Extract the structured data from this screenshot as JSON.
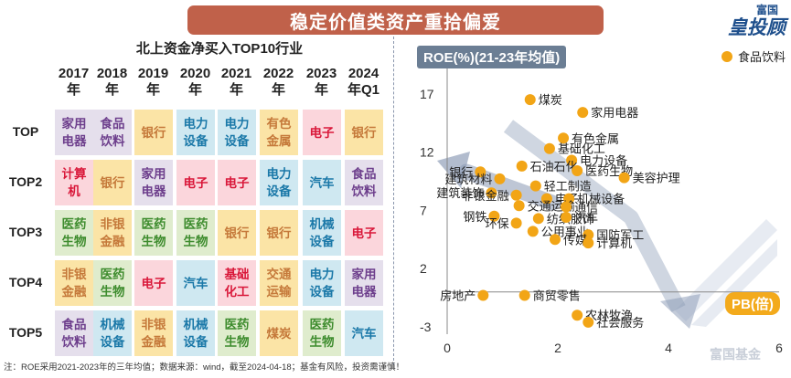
{
  "header": {
    "title": "稳定价值类资产重拾偏爱"
  },
  "logo": {
    "top": "富国",
    "main": "皇投顾",
    "icon": "brand-logo"
  },
  "table": {
    "title": "北上资金净买入TOP10行业",
    "years": [
      [
        "2017",
        "年"
      ],
      [
        "2018",
        "年"
      ],
      [
        "2019",
        "年"
      ],
      [
        "2020",
        "年"
      ],
      [
        "2021",
        "年"
      ],
      [
        "2022",
        "年"
      ],
      [
        "2023",
        "年"
      ],
      [
        "2024",
        "年Q1"
      ]
    ],
    "rows": [
      {
        "label": "TOP",
        "cells": [
          {
            "t": [
              "家用",
              "电器"
            ],
            "c": "purple"
          },
          {
            "t": [
              "食品",
              "饮料"
            ],
            "c": "purple"
          },
          {
            "t": [
              "银行"
            ],
            "c": "orange"
          },
          {
            "t": [
              "电力",
              "设备"
            ],
            "c": "blue"
          },
          {
            "t": [
              "电力",
              "设备"
            ],
            "c": "blue"
          },
          {
            "t": [
              "有色",
              "金属"
            ],
            "c": "orange"
          },
          {
            "t": [
              "电子"
            ],
            "c": "red"
          },
          {
            "t": [
              "银行"
            ],
            "c": "orange"
          }
        ]
      },
      {
        "label": "TOP2",
        "cells": [
          {
            "t": [
              "计算",
              "机"
            ],
            "c": "red"
          },
          {
            "t": [
              "银行"
            ],
            "c": "orange"
          },
          {
            "t": [
              "家用",
              "电器"
            ],
            "c": "purple"
          },
          {
            "t": [
              "电子"
            ],
            "c": "red"
          },
          {
            "t": [
              "电子"
            ],
            "c": "red"
          },
          {
            "t": [
              "电力",
              "设备"
            ],
            "c": "blue"
          },
          {
            "t": [
              "汽车"
            ],
            "c": "blue"
          },
          {
            "t": [
              "食品",
              "饮料"
            ],
            "c": "purple"
          }
        ]
      },
      {
        "label": "TOP3",
        "cells": [
          {
            "t": [
              "医药",
              "生物"
            ],
            "c": "green"
          },
          {
            "t": [
              "非银",
              "金融"
            ],
            "c": "orange"
          },
          {
            "t": [
              "医药",
              "生物"
            ],
            "c": "green"
          },
          {
            "t": [
              "医药",
              "生物"
            ],
            "c": "green"
          },
          {
            "t": [
              "银行"
            ],
            "c": "orange"
          },
          {
            "t": [
              "银行"
            ],
            "c": "orange"
          },
          {
            "t": [
              "机械",
              "设备"
            ],
            "c": "blue"
          },
          {
            "t": [
              "电子"
            ],
            "c": "red"
          }
        ]
      },
      {
        "label": "TOP4",
        "cells": [
          {
            "t": [
              "非银",
              "金融"
            ],
            "c": "orange"
          },
          {
            "t": [
              "医药",
              "生物"
            ],
            "c": "green"
          },
          {
            "t": [
              "电子"
            ],
            "c": "red"
          },
          {
            "t": [
              "汽车"
            ],
            "c": "blue"
          },
          {
            "t": [
              "基础",
              "化工"
            ],
            "c": "red"
          },
          {
            "t": [
              "交通",
              "运输"
            ],
            "c": "orange"
          },
          {
            "t": [
              "电力",
              "设备"
            ],
            "c": "blue"
          },
          {
            "t": [
              "家用",
              "电器"
            ],
            "c": "purple"
          }
        ]
      },
      {
        "label": "TOP5",
        "cells": [
          {
            "t": [
              "食品",
              "饮料"
            ],
            "c": "purple"
          },
          {
            "t": [
              "机械",
              "设备"
            ],
            "c": "blue"
          },
          {
            "t": [
              "非银",
              "金融"
            ],
            "c": "orange"
          },
          {
            "t": [
              "机械",
              "设备"
            ],
            "c": "blue"
          },
          {
            "t": [
              "医药",
              "生物"
            ],
            "c": "green"
          },
          {
            "t": [
              "煤炭"
            ],
            "c": "orange"
          },
          {
            "t": [
              "医药",
              "生物"
            ],
            "c": "green"
          },
          {
            "t": [
              "汽车"
            ],
            "c": "blue"
          }
        ]
      }
    ]
  },
  "footnote": "注：ROE采用2021-2023年的三年均值；数据来源：wind，截至2024-04-18；基金有风险，投资需谨慎！",
  "watermark": "富国基金",
  "colors": {
    "orange": "#f2a516",
    "arrow": "#8898b3",
    "banner": "#c0614a",
    "ylabel_bg": "#6b7e94",
    "xlabel_bg": "#f3aa1c"
  },
  "chart_data": {
    "type": "scatter",
    "xlabel": "PB(倍)",
    "ylabel": "ROE(%)(21-23年均值)",
    "xlim": [
      0,
      6
    ],
    "ylim": [
      -3,
      18
    ],
    "xticks": [
      "0",
      "2",
      "4",
      "6"
    ],
    "yticks": [
      "17",
      "12",
      "7",
      "2",
      "-3"
    ],
    "yticks_values": [
      17,
      12,
      7,
      2,
      -3
    ],
    "xticks_values": [
      0,
      2,
      4,
      6
    ],
    "grid": false,
    "legend": {
      "label": "食品饮料",
      "position": "top-right"
    },
    "points": [
      {
        "name": "煤炭",
        "x": 1.5,
        "y": 16.5
      },
      {
        "name": "家用电器",
        "x": 2.45,
        "y": 15.4
      },
      {
        "name": "有色金属",
        "x": 2.1,
        "y": 13.2
      },
      {
        "name": "基础化工",
        "x": 1.85,
        "y": 12.3
      },
      {
        "name": "电力设备",
        "x": 2.25,
        "y": 11.3
      },
      {
        "name": "石油石化",
        "x": 1.35,
        "y": 10.8
      },
      {
        "name": "医药生物",
        "x": 2.35,
        "y": 10.4
      },
      {
        "name": "美容护理",
        "x": 3.2,
        "y": 9.8
      },
      {
        "name": "银行",
        "x": 0.6,
        "y": 10.3
      },
      {
        "name": "建筑材料",
        "x": 0.95,
        "y": 9.7
      },
      {
        "name": "轻工制造",
        "x": 1.6,
        "y": 9.1
      },
      {
        "name": "建筑装饰",
        "x": 0.8,
        "y": 8.5
      },
      {
        "name": "非银金融",
        "x": 1.25,
        "y": 8.3
      },
      {
        "name": "电子",
        "x": 1.8,
        "y": 8.0
      },
      {
        "name": "机械设备",
        "x": 2.2,
        "y": 8.0
      },
      {
        "name": "交通运输",
        "x": 1.3,
        "y": 7.4
      },
      {
        "name": "通信",
        "x": 2.15,
        "y": 7.3
      },
      {
        "name": "钢铁",
        "x": 0.85,
        "y": 6.5
      },
      {
        "name": "纺织服饰",
        "x": 1.65,
        "y": 6.3
      },
      {
        "name": "汽车",
        "x": 2.15,
        "y": 6.4
      },
      {
        "name": "环保",
        "x": 1.25,
        "y": 5.9
      },
      {
        "name": "公用事业",
        "x": 1.55,
        "y": 5.2
      },
      {
        "name": "国防军工",
        "x": 2.55,
        "y": 4.9
      },
      {
        "name": "传媒",
        "x": 1.95,
        "y": 4.5
      },
      {
        "name": "计算机",
        "x": 2.55,
        "y": 4.2
      },
      {
        "name": "房地产",
        "x": 0.65,
        "y": -0.3
      },
      {
        "name": "商贸零售",
        "x": 1.4,
        "y": -0.3
      },
      {
        "name": "农林牧渔",
        "x": 2.35,
        "y": -2.0
      },
      {
        "name": "社会服务",
        "x": 2.55,
        "y": -2.6
      }
    ]
  }
}
